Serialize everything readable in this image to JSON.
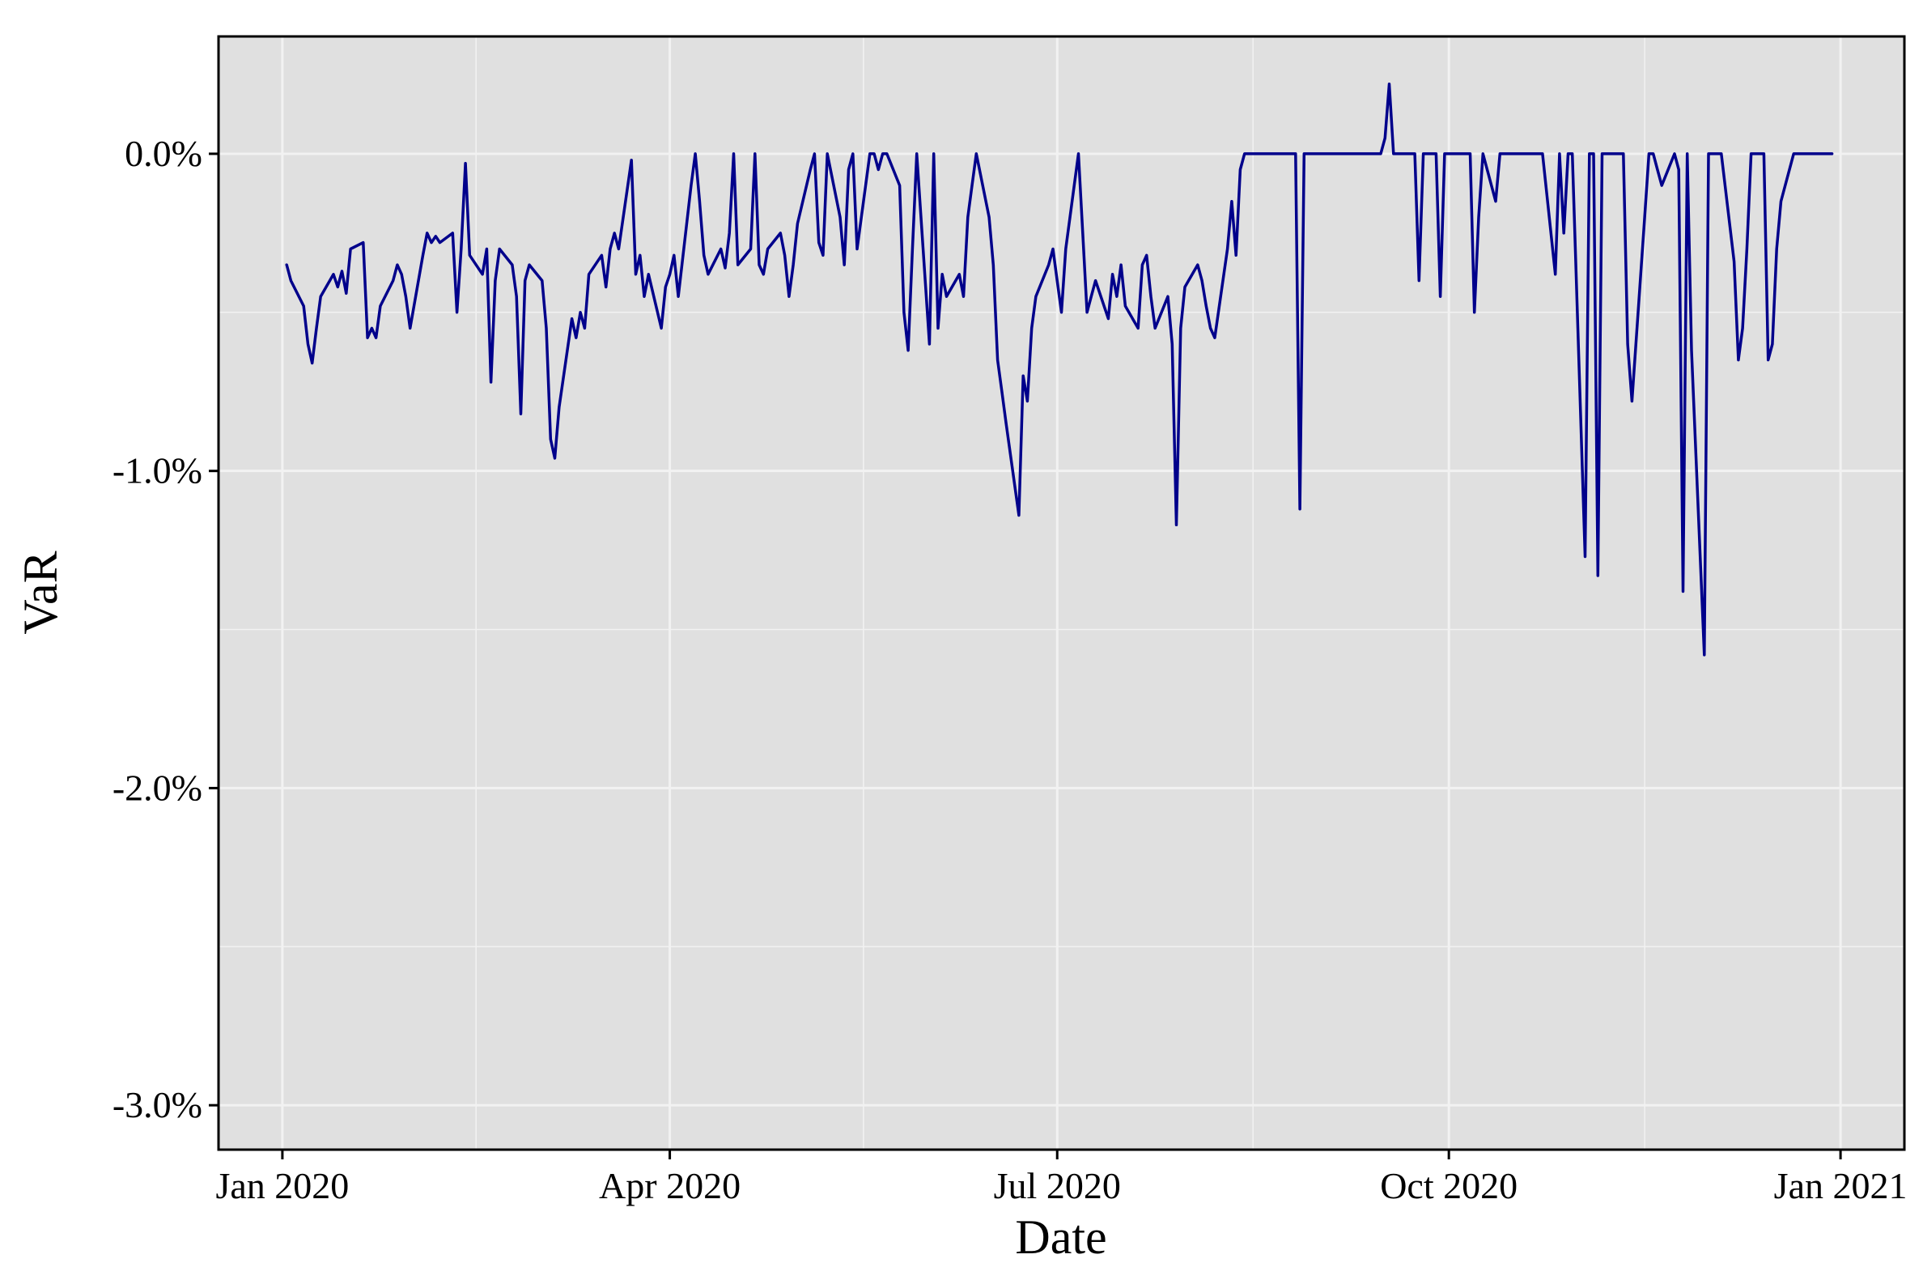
{
  "chart_data": {
    "type": "line",
    "title": "",
    "xlabel": "Date",
    "ylabel": "VaR",
    "x_ticks": [
      {
        "label": "Jan 2020",
        "date": "2020-01-01"
      },
      {
        "label": "Apr 2020",
        "date": "2020-04-01"
      },
      {
        "label": "Jul 2020",
        "date": "2020-07-01"
      },
      {
        "label": "Oct 2020",
        "date": "2020-10-01"
      },
      {
        "label": "Jan 2021",
        "date": "2021-01-01"
      }
    ],
    "y_ticks": [
      {
        "label": "0.0%",
        "value": 0.0
      },
      {
        "label": "-1.0%",
        "value": -1.0
      },
      {
        "label": "-2.0%",
        "value": -2.0
      },
      {
        "label": "-3.0%",
        "value": -3.0
      }
    ],
    "xlim": [
      "2019-12-17",
      "2021-01-16"
    ],
    "ylim": [
      -3.14,
      0.37
    ],
    "grid": true,
    "legend": "none",
    "colors": {
      "line": "#00008B",
      "panel": "#E0E0E0",
      "grid": "#F2F2F2"
    },
    "series": [
      {
        "points": [
          [
            "2020-01-02",
            -0.35
          ],
          [
            "2020-01-03",
            -0.4
          ],
          [
            "2020-01-06",
            -0.48
          ],
          [
            "2020-01-07",
            -0.6
          ],
          [
            "2020-01-08",
            -0.66
          ],
          [
            "2020-01-09",
            -0.55
          ],
          [
            "2020-01-10",
            -0.45
          ],
          [
            "2020-01-13",
            -0.38
          ],
          [
            "2020-01-14",
            -0.42
          ],
          [
            "2020-01-15",
            -0.37
          ],
          [
            "2020-01-16",
            -0.44
          ],
          [
            "2020-01-17",
            -0.3
          ],
          [
            "2020-01-20",
            -0.28
          ],
          [
            "2020-01-21",
            -0.58
          ],
          [
            "2020-01-22",
            -0.55
          ],
          [
            "2020-01-23",
            -0.58
          ],
          [
            "2020-01-24",
            -0.48
          ],
          [
            "2020-01-27",
            -0.4
          ],
          [
            "2020-01-28",
            -0.35
          ],
          [
            "2020-01-29",
            -0.38
          ],
          [
            "2020-01-30",
            -0.45
          ],
          [
            "2020-01-31",
            -0.55
          ],
          [
            "2020-02-03",
            -0.32
          ],
          [
            "2020-02-04",
            -0.25
          ],
          [
            "2020-02-05",
            -0.28
          ],
          [
            "2020-02-06",
            -0.26
          ],
          [
            "2020-02-07",
            -0.28
          ],
          [
            "2020-02-10",
            -0.25
          ],
          [
            "2020-02-11",
            -0.5
          ],
          [
            "2020-02-12",
            -0.3
          ],
          [
            "2020-02-13",
            -0.03
          ],
          [
            "2020-02-14",
            -0.32
          ],
          [
            "2020-02-17",
            -0.38
          ],
          [
            "2020-02-18",
            -0.3
          ],
          [
            "2020-02-19",
            -0.72
          ],
          [
            "2020-02-20",
            -0.4
          ],
          [
            "2020-02-21",
            -0.3
          ],
          [
            "2020-02-24",
            -0.35
          ],
          [
            "2020-02-25",
            -0.45
          ],
          [
            "2020-02-26",
            -0.82
          ],
          [
            "2020-02-27",
            -0.4
          ],
          [
            "2020-02-28",
            -0.35
          ],
          [
            "2020-03-02",
            -0.4
          ],
          [
            "2020-03-03",
            -0.55
          ],
          [
            "2020-03-04",
            -0.9
          ],
          [
            "2020-03-05",
            -0.96
          ],
          [
            "2020-03-06",
            -0.8
          ],
          [
            "2020-03-09",
            -0.52
          ],
          [
            "2020-03-10",
            -0.58
          ],
          [
            "2020-03-11",
            -0.5
          ],
          [
            "2020-03-12",
            -0.55
          ],
          [
            "2020-03-13",
            -0.38
          ],
          [
            "2020-03-16",
            -0.32
          ],
          [
            "2020-03-17",
            -0.42
          ],
          [
            "2020-03-18",
            -0.3
          ],
          [
            "2020-03-19",
            -0.25
          ],
          [
            "2020-03-20",
            -0.3
          ],
          [
            "2020-03-23",
            -0.02
          ],
          [
            "2020-03-24",
            -0.38
          ],
          [
            "2020-03-25",
            -0.32
          ],
          [
            "2020-03-26",
            -0.45
          ],
          [
            "2020-03-27",
            -0.38
          ],
          [
            "2020-03-30",
            -0.55
          ],
          [
            "2020-03-31",
            -0.42
          ],
          [
            "2020-04-01",
            -0.38
          ],
          [
            "2020-04-02",
            -0.32
          ],
          [
            "2020-04-03",
            -0.45
          ],
          [
            "2020-04-06",
            -0.1
          ],
          [
            "2020-04-07",
            0.0
          ],
          [
            "2020-04-08",
            -0.15
          ],
          [
            "2020-04-09",
            -0.32
          ],
          [
            "2020-04-10",
            -0.38
          ],
          [
            "2020-04-13",
            -0.3
          ],
          [
            "2020-04-14",
            -0.36
          ],
          [
            "2020-04-15",
            -0.25
          ],
          [
            "2020-04-16",
            0.0
          ],
          [
            "2020-04-17",
            -0.35
          ],
          [
            "2020-04-20",
            -0.3
          ],
          [
            "2020-04-21",
            0.0
          ],
          [
            "2020-04-22",
            -0.35
          ],
          [
            "2020-04-23",
            -0.38
          ],
          [
            "2020-04-24",
            -0.3
          ],
          [
            "2020-04-27",
            -0.25
          ],
          [
            "2020-04-28",
            -0.32
          ],
          [
            "2020-04-29",
            -0.45
          ],
          [
            "2020-04-30",
            -0.35
          ],
          [
            "2020-05-01",
            -0.22
          ],
          [
            "2020-05-04",
            -0.05
          ],
          [
            "2020-05-05",
            0.0
          ],
          [
            "2020-05-06",
            -0.28
          ],
          [
            "2020-05-07",
            -0.32
          ],
          [
            "2020-05-08",
            0.0
          ],
          [
            "2020-05-11",
            -0.2
          ],
          [
            "2020-05-12",
            -0.35
          ],
          [
            "2020-05-13",
            -0.05
          ],
          [
            "2020-05-14",
            0.0
          ],
          [
            "2020-05-15",
            -0.3
          ],
          [
            "2020-05-18",
            0.0
          ],
          [
            "2020-05-19",
            0.0
          ],
          [
            "2020-05-20",
            -0.05
          ],
          [
            "2020-05-21",
            0.0
          ],
          [
            "2020-05-22",
            0.0
          ],
          [
            "2020-05-25",
            -0.1
          ],
          [
            "2020-05-26",
            -0.5
          ],
          [
            "2020-05-27",
            -0.62
          ],
          [
            "2020-05-28",
            -0.3
          ],
          [
            "2020-05-29",
            0.0
          ],
          [
            "2020-06-01",
            -0.6
          ],
          [
            "2020-06-02",
            0.0
          ],
          [
            "2020-06-03",
            -0.55
          ],
          [
            "2020-06-04",
            -0.38
          ],
          [
            "2020-06-05",
            -0.45
          ],
          [
            "2020-06-08",
            -0.38
          ],
          [
            "2020-06-09",
            -0.45
          ],
          [
            "2020-06-10",
            -0.2
          ],
          [
            "2020-06-11",
            -0.1
          ],
          [
            "2020-06-12",
            0.0
          ],
          [
            "2020-06-15",
            -0.2
          ],
          [
            "2020-06-16",
            -0.35
          ],
          [
            "2020-06-17",
            -0.65
          ],
          [
            "2020-06-18",
            -0.75
          ],
          [
            "2020-06-19",
            -0.85
          ],
          [
            "2020-06-22",
            -1.14
          ],
          [
            "2020-06-23",
            -0.7
          ],
          [
            "2020-06-24",
            -0.78
          ],
          [
            "2020-06-25",
            -0.55
          ],
          [
            "2020-06-26",
            -0.45
          ],
          [
            "2020-06-29",
            -0.35
          ],
          [
            "2020-06-30",
            -0.3
          ],
          [
            "2020-07-01",
            -0.4
          ],
          [
            "2020-07-02",
            -0.5
          ],
          [
            "2020-07-03",
            -0.3
          ],
          [
            "2020-07-06",
            0.0
          ],
          [
            "2020-07-07",
            -0.25
          ],
          [
            "2020-07-08",
            -0.5
          ],
          [
            "2020-07-09",
            -0.45
          ],
          [
            "2020-07-10",
            -0.4
          ],
          [
            "2020-07-13",
            -0.52
          ],
          [
            "2020-07-14",
            -0.38
          ],
          [
            "2020-07-15",
            -0.45
          ],
          [
            "2020-07-16",
            -0.35
          ],
          [
            "2020-07-17",
            -0.48
          ],
          [
            "2020-07-20",
            -0.55
          ],
          [
            "2020-07-21",
            -0.35
          ],
          [
            "2020-07-22",
            -0.32
          ],
          [
            "2020-07-23",
            -0.45
          ],
          [
            "2020-07-24",
            -0.55
          ],
          [
            "2020-07-27",
            -0.45
          ],
          [
            "2020-07-28",
            -0.6
          ],
          [
            "2020-07-29",
            -1.17
          ],
          [
            "2020-07-30",
            -0.55
          ],
          [
            "2020-07-31",
            -0.42
          ],
          [
            "2020-08-03",
            -0.35
          ],
          [
            "2020-08-04",
            -0.4
          ],
          [
            "2020-08-05",
            -0.48
          ],
          [
            "2020-08-06",
            -0.55
          ],
          [
            "2020-08-07",
            -0.58
          ],
          [
            "2020-08-10",
            -0.3
          ],
          [
            "2020-08-11",
            -0.15
          ],
          [
            "2020-08-12",
            -0.32
          ],
          [
            "2020-08-13",
            -0.05
          ],
          [
            "2020-08-14",
            0.0
          ],
          [
            "2020-08-17",
            0.0
          ],
          [
            "2020-08-18",
            0.0
          ],
          [
            "2020-08-19",
            0.0
          ],
          [
            "2020-08-20",
            0.0
          ],
          [
            "2020-08-21",
            0.0
          ],
          [
            "2020-08-24",
            0.0
          ],
          [
            "2020-08-25",
            0.0
          ],
          [
            "2020-08-26",
            0.0
          ],
          [
            "2020-08-27",
            -1.12
          ],
          [
            "2020-08-28",
            0.0
          ],
          [
            "2020-08-31",
            0.0
          ],
          [
            "2020-09-01",
            0.0
          ],
          [
            "2020-09-02",
            0.0
          ],
          [
            "2020-09-03",
            0.0
          ],
          [
            "2020-09-04",
            0.0
          ],
          [
            "2020-09-07",
            0.0
          ],
          [
            "2020-09-08",
            0.0
          ],
          [
            "2020-09-09",
            0.0
          ],
          [
            "2020-09-10",
            0.0
          ],
          [
            "2020-09-11",
            0.0
          ],
          [
            "2020-09-14",
            0.0
          ],
          [
            "2020-09-15",
            0.0
          ],
          [
            "2020-09-16",
            0.05
          ],
          [
            "2020-09-17",
            0.22
          ],
          [
            "2020-09-18",
            0.0
          ],
          [
            "2020-09-21",
            0.0
          ],
          [
            "2020-09-22",
            0.0
          ],
          [
            "2020-09-23",
            0.0
          ],
          [
            "2020-09-24",
            -0.4
          ],
          [
            "2020-09-25",
            0.0
          ],
          [
            "2020-09-28",
            0.0
          ],
          [
            "2020-09-29",
            -0.45
          ],
          [
            "2020-09-30",
            0.0
          ],
          [
            "2020-10-01",
            0.0
          ],
          [
            "2020-10-02",
            0.0
          ],
          [
            "2020-10-05",
            0.0
          ],
          [
            "2020-10-06",
            0.0
          ],
          [
            "2020-10-07",
            -0.5
          ],
          [
            "2020-10-08",
            -0.2
          ],
          [
            "2020-10-09",
            0.0
          ],
          [
            "2020-10-12",
            -0.15
          ],
          [
            "2020-10-13",
            0.0
          ],
          [
            "2020-10-14",
            0.0
          ],
          [
            "2020-10-15",
            0.0
          ],
          [
            "2020-10-16",
            0.0
          ],
          [
            "2020-10-19",
            0.0
          ],
          [
            "2020-10-20",
            0.0
          ],
          [
            "2020-10-21",
            0.0
          ],
          [
            "2020-10-22",
            0.0
          ],
          [
            "2020-10-23",
            0.0
          ],
          [
            "2020-10-26",
            -0.38
          ],
          [
            "2020-10-27",
            0.0
          ],
          [
            "2020-10-28",
            -0.25
          ],
          [
            "2020-10-29",
            0.0
          ],
          [
            "2020-10-30",
            0.0
          ],
          [
            "2020-11-02",
            -1.27
          ],
          [
            "2020-11-03",
            0.0
          ],
          [
            "2020-11-04",
            0.0
          ],
          [
            "2020-11-05",
            -1.33
          ],
          [
            "2020-11-06",
            0.0
          ],
          [
            "2020-11-09",
            0.0
          ],
          [
            "2020-11-10",
            0.0
          ],
          [
            "2020-11-11",
            0.0
          ],
          [
            "2020-11-12",
            -0.6
          ],
          [
            "2020-11-13",
            -0.78
          ],
          [
            "2020-11-16",
            -0.2
          ],
          [
            "2020-11-17",
            0.0
          ],
          [
            "2020-11-18",
            0.0
          ],
          [
            "2020-11-19",
            -0.05
          ],
          [
            "2020-11-20",
            -0.1
          ],
          [
            "2020-11-23",
            0.0
          ],
          [
            "2020-11-24",
            -0.05
          ],
          [
            "2020-11-25",
            -1.38
          ],
          [
            "2020-11-26",
            0.0
          ],
          [
            "2020-11-27",
            -0.62
          ],
          [
            "2020-11-30",
            -1.58
          ],
          [
            "2020-12-01",
            0.0
          ],
          [
            "2020-12-02",
            0.0
          ],
          [
            "2020-12-03",
            0.0
          ],
          [
            "2020-12-04",
            0.0
          ],
          [
            "2020-12-07",
            -0.34
          ],
          [
            "2020-12-08",
            -0.65
          ],
          [
            "2020-12-09",
            -0.55
          ],
          [
            "2020-12-10",
            -0.3
          ],
          [
            "2020-12-11",
            0.0
          ],
          [
            "2020-12-14",
            0.0
          ],
          [
            "2020-12-15",
            -0.65
          ],
          [
            "2020-12-16",
            -0.6
          ],
          [
            "2020-12-17",
            -0.3
          ],
          [
            "2020-12-18",
            -0.15
          ],
          [
            "2020-12-21",
            0.0
          ],
          [
            "2020-12-22",
            0.0
          ],
          [
            "2020-12-23",
            0.0
          ],
          [
            "2020-12-28",
            0.0
          ],
          [
            "2020-12-29",
            0.0
          ],
          [
            "2020-12-30",
            0.0
          ]
        ]
      }
    ]
  }
}
